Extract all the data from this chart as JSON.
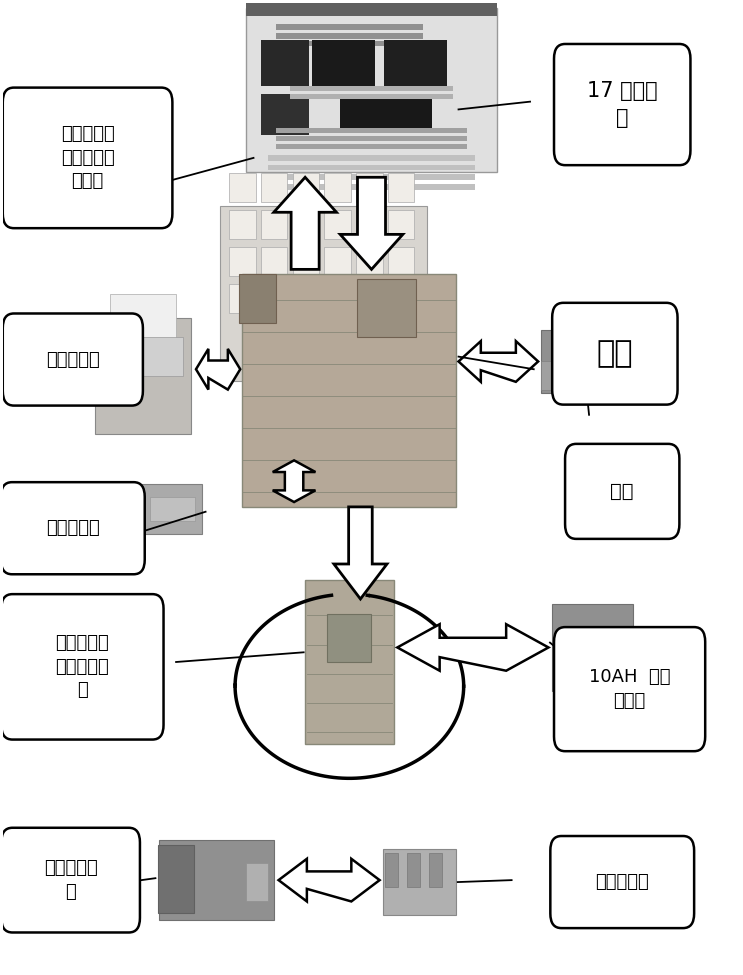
{
  "bg_color": "#ffffff",
  "labels": {
    "monitor": "17 吋液晶\n屏",
    "keyboard": "带有操作流\n程指示的专\n用键盘",
    "printer": "微型打印机",
    "mainboard": "主板",
    "cardslot": "多功能卡槽",
    "cdrom": "光驱",
    "power": "电源及自动\n加压控制单\n元",
    "battery": "10AH  锂离\n子电池",
    "pump": "医用微型气\n泵",
    "valve": "三通电磁阀"
  },
  "figsize": [
    7.43,
    9.75
  ],
  "dpi": 100
}
